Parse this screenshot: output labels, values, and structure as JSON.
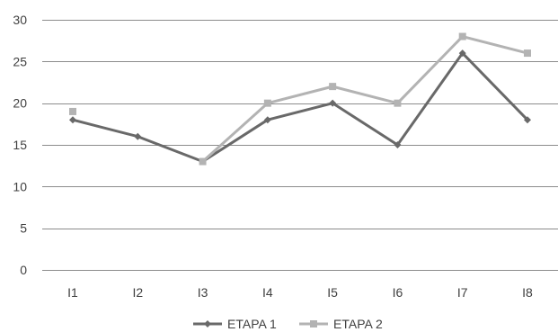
{
  "chart_data": {
    "type": "line",
    "categories": [
      "I1",
      "I2",
      "I3",
      "I4",
      "I5",
      "I6",
      "I7",
      "I8"
    ],
    "series": [
      {
        "name": "ETAPA 1",
        "values": [
          18,
          16,
          13,
          18,
          20,
          15,
          26,
          18
        ],
        "color": "#696969",
        "marker": "diamond"
      },
      {
        "name": "ETAPA 2",
        "values": [
          19,
          null,
          13,
          20,
          22,
          20,
          28,
          26
        ],
        "color": "#b3b3b3",
        "marker": "square"
      }
    ],
    "title": "",
    "xlabel": "",
    "ylabel": "",
    "ylim": [
      0,
      30
    ],
    "yticks": [
      0,
      5,
      10,
      15,
      20,
      25,
      30
    ],
    "grid": true,
    "legend_position": "bottom",
    "gridline_color": "#8c8c8c",
    "text_color": "#404040"
  }
}
